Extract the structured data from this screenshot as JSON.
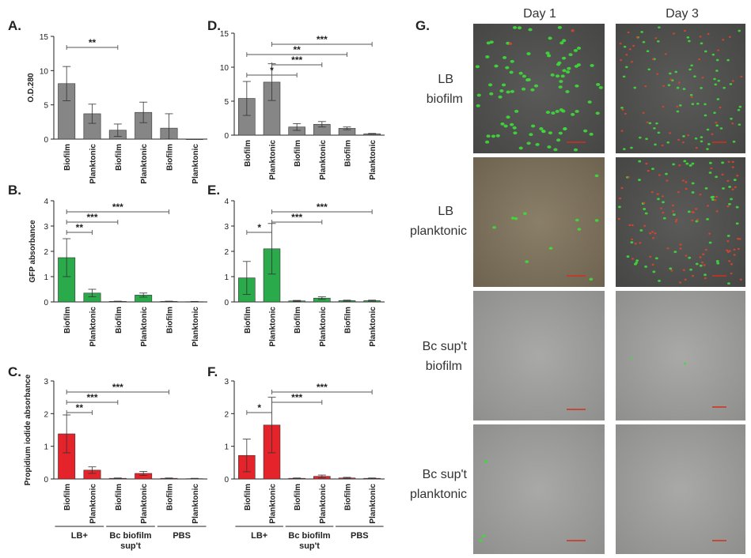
{
  "figure_letters": {
    "A": "A.",
    "B": "B.",
    "C": "C.",
    "D": "D.",
    "E": "E.",
    "F": "F.",
    "G": "G."
  },
  "colors": {
    "gray": "#868686",
    "green": "#2aaa4a",
    "red": "#e4232a",
    "axis": "#222222",
    "ph_live": "#3fdc3a",
    "ph_dead": "#d8452c"
  },
  "chart_data": [
    {
      "panel": "A",
      "type": "bar",
      "ylabel": "O.D.280",
      "ylim": [
        0,
        15
      ],
      "yticks": [
        0,
        5,
        10,
        15
      ],
      "categories": [
        "Biofilm",
        "Planktonic",
        "Biofilm",
        "Planktonic",
        "Biofilm",
        "Planktonic"
      ],
      "values": [
        8.1,
        3.7,
        1.3,
        3.9,
        1.6,
        0
      ],
      "errors": [
        2.5,
        1.4,
        0.9,
        1.5,
        2.1,
        0
      ],
      "color": "gray",
      "sig": [
        {
          "from": 1,
          "to": 3,
          "label": "**"
        }
      ]
    },
    {
      "panel": "D",
      "type": "bar",
      "ylabel": "",
      "ylim": [
        0,
        15
      ],
      "yticks": [
        0,
        5,
        10,
        15
      ],
      "categories": [
        "Biofilm",
        "Planktonic",
        "Biofilm",
        "Planktonic",
        "Biofilm",
        "Planktonic"
      ],
      "values": [
        5.4,
        7.8,
        1.2,
        1.6,
        1.0,
        0.2
      ],
      "errors": [
        2.5,
        2.7,
        0.5,
        0.4,
        0.2,
        0.05
      ],
      "color": "gray",
      "sig": [
        {
          "from": 1,
          "to": 3,
          "label": "*"
        },
        {
          "from": 1,
          "to": 5,
          "label": "**"
        },
        {
          "from": 2,
          "to": 4,
          "label": "***"
        },
        {
          "from": 2,
          "to": 6,
          "label": "***"
        }
      ]
    },
    {
      "panel": "B",
      "type": "bar",
      "ylabel": "GFP absorbance",
      "ylim": [
        0,
        4
      ],
      "yticks": [
        0,
        1,
        2,
        3,
        4
      ],
      "categories": [
        "Biofilm",
        "Planktonic",
        "Biofilm",
        "Planktonic",
        "Biofilm",
        "Planktonic"
      ],
      "values": [
        1.75,
        0.35,
        0.02,
        0.27,
        0.02,
        0.01
      ],
      "errors": [
        0.75,
        0.15,
        0.01,
        0.08,
        0.01,
        0.01
      ],
      "color": "green",
      "sig": [
        {
          "from": 1,
          "to": 2,
          "label": "**"
        },
        {
          "from": 1,
          "to": 3,
          "label": "***"
        },
        {
          "from": 1,
          "to": 5,
          "label": "***"
        }
      ]
    },
    {
      "panel": "E",
      "type": "bar",
      "ylabel": "",
      "ylim": [
        0,
        4
      ],
      "yticks": [
        0,
        1,
        2,
        3,
        4
      ],
      "categories": [
        "Biofilm",
        "Planktonic",
        "Biofilm",
        "Planktonic",
        "Biofilm",
        "Planktonic"
      ],
      "values": [
        0.95,
        2.1,
        0.04,
        0.15,
        0.05,
        0.05
      ],
      "errors": [
        0.65,
        1.0,
        0.02,
        0.05,
        0.02,
        0.02
      ],
      "color": "green",
      "sig": [
        {
          "from": 1,
          "to": 2,
          "label": "*"
        },
        {
          "from": 2,
          "to": 4,
          "label": "***"
        },
        {
          "from": 2,
          "to": 6,
          "label": "***"
        }
      ]
    },
    {
      "panel": "C",
      "type": "bar",
      "ylabel": "Propidium iodide absorbance",
      "ylim": [
        0,
        3
      ],
      "yticks": [
        0,
        1,
        2,
        3
      ],
      "categories": [
        "Biofilm",
        "Planktonic",
        "Biofilm",
        "Planktonic",
        "Biofilm",
        "Planktonic"
      ],
      "values": [
        1.38,
        0.27,
        0.02,
        0.17,
        0.02,
        0.01
      ],
      "errors": [
        0.58,
        0.1,
        0.01,
        0.06,
        0.01,
        0.01
      ],
      "color": "red",
      "sig": [
        {
          "from": 1,
          "to": 2,
          "label": "**"
        },
        {
          "from": 1,
          "to": 3,
          "label": "***"
        },
        {
          "from": 1,
          "to": 5,
          "label": "***"
        }
      ],
      "groups": [
        {
          "label": "LB+",
          "sub": ""
        },
        {
          "label": "Bc biofilm",
          "sub": "sup't"
        },
        {
          "label": "PBS",
          "sub": ""
        }
      ]
    },
    {
      "panel": "F",
      "type": "bar",
      "ylabel": "",
      "ylim": [
        0,
        3
      ],
      "yticks": [
        0,
        1,
        2,
        3
      ],
      "categories": [
        "Biofilm",
        "Planktonic",
        "Biofilm",
        "Planktonic",
        "Biofilm",
        "Planktonic"
      ],
      "values": [
        0.72,
        1.65,
        0.02,
        0.08,
        0.03,
        0.02
      ],
      "errors": [
        0.5,
        0.85,
        0.01,
        0.04,
        0.02,
        0.01
      ],
      "color": "red",
      "sig": [
        {
          "from": 1,
          "to": 2,
          "label": "*"
        },
        {
          "from": 2,
          "to": 4,
          "label": "***"
        },
        {
          "from": 2,
          "to": 6,
          "label": "***"
        }
      ],
      "groups": [
        {
          "label": "LB+",
          "sub": ""
        },
        {
          "label": "Bc biofilm",
          "sub": "sup't"
        },
        {
          "label": "PBS",
          "sub": ""
        }
      ]
    }
  ],
  "micrographs": {
    "columns": [
      "Day 1",
      "Day 3"
    ],
    "rows": [
      {
        "line1": "LB",
        "line2": "biofilm"
      },
      {
        "line1": "LB",
        "line2": "planktonic"
      },
      {
        "line1": "Bc sup't",
        "line2": "biofilm"
      },
      {
        "line1": "Bc sup't",
        "line2": "planktonic"
      }
    ]
  }
}
